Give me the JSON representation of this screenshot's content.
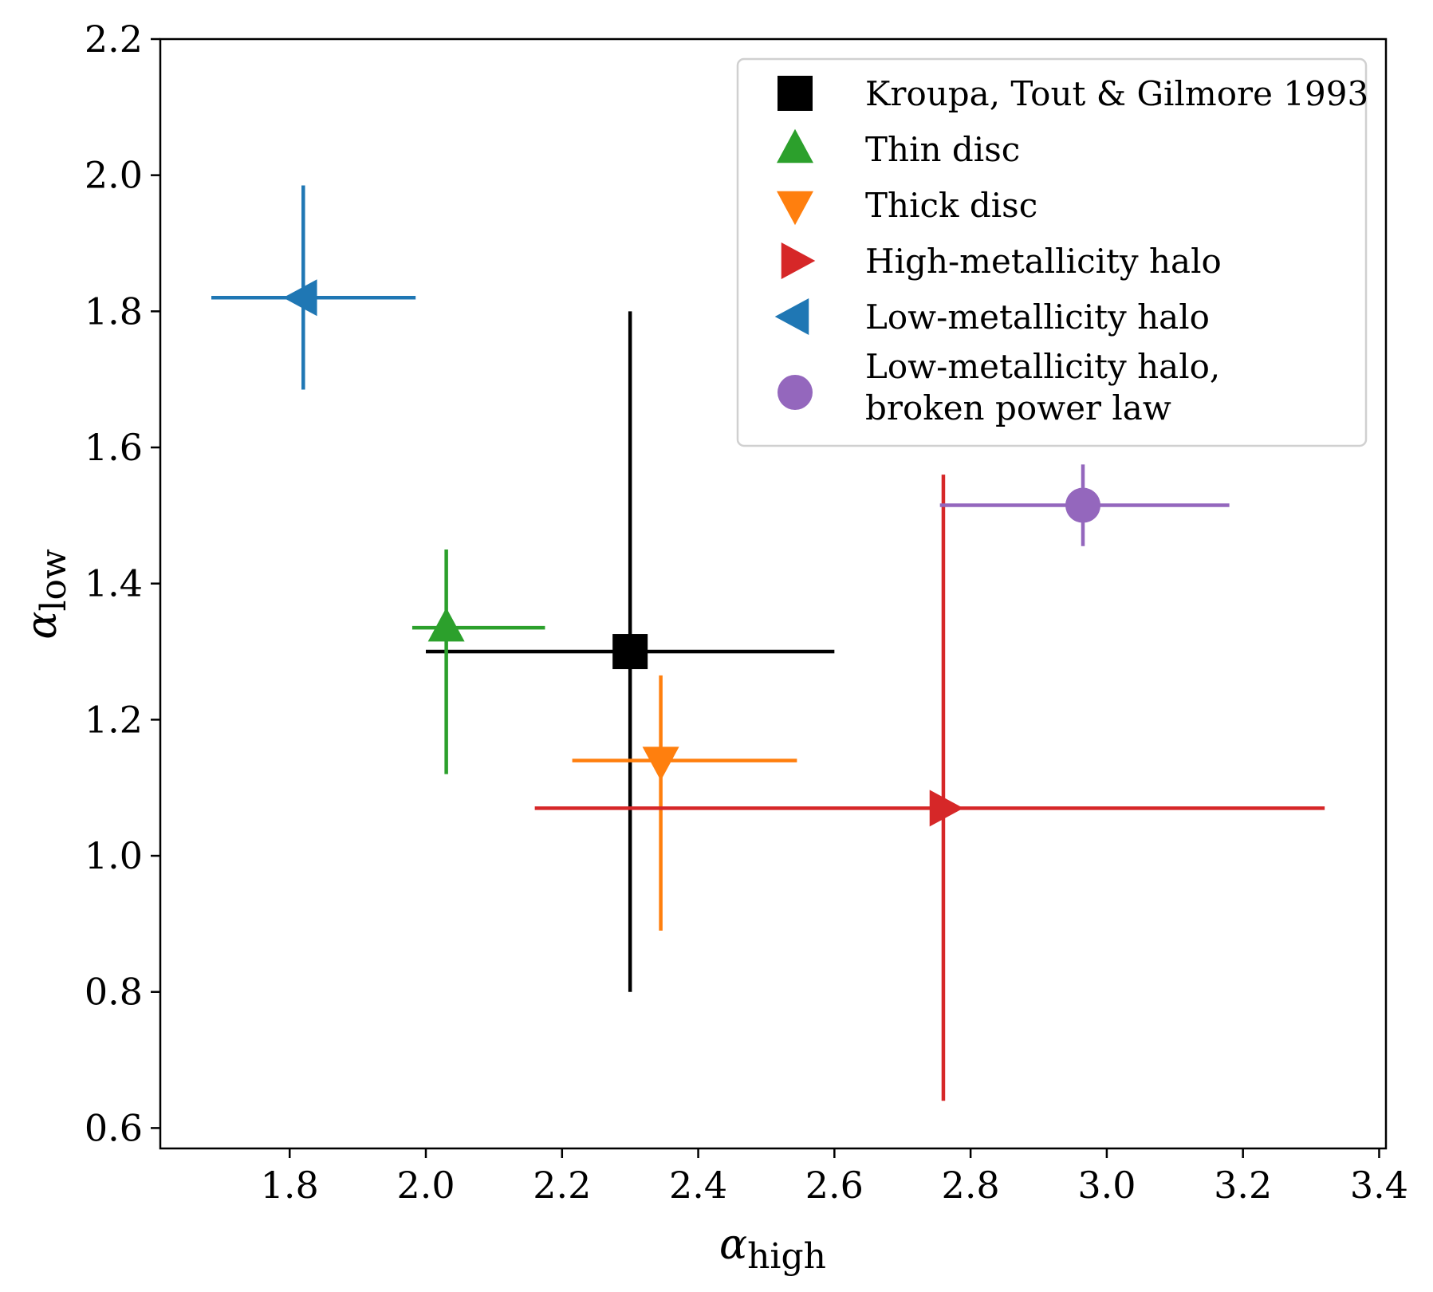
{
  "chart_data": {
    "type": "scatter",
    "title": "",
    "xlabel": {
      "symbol": "α",
      "subscript": "high"
    },
    "ylabel": {
      "symbol": "α",
      "subscript": "low"
    },
    "xlim": [
      1.61,
      3.41
    ],
    "ylim": [
      0.57,
      2.2
    ],
    "x_ticks": [
      "1.8",
      "2.0",
      "2.2",
      "2.4",
      "2.6",
      "2.8",
      "3.0",
      "3.2",
      "3.4"
    ],
    "y_ticks": [
      "0.6",
      "0.8",
      "1.0",
      "1.2",
      "1.4",
      "1.6",
      "1.8",
      "2.0",
      "2.2"
    ],
    "grid": false,
    "legend_position": "top-right",
    "series": [
      {
        "name": "Kroupa, Tout & Gilmore 1993",
        "marker": "square",
        "color": "#000000",
        "x": 2.3,
        "y": 1.3,
        "x_err": [
          0.3,
          0.3
        ],
        "y_err": [
          0.5,
          0.5
        ]
      },
      {
        "name": "Thin disc",
        "marker": "triangle-up",
        "color": "#2ca02c",
        "x": 2.03,
        "y": 1.335,
        "x_err": [
          0.05,
          0.145
        ],
        "y_err": [
          0.215,
          0.115
        ]
      },
      {
        "name": "Thick disc",
        "marker": "triangle-down",
        "color": "#ff7f0e",
        "x": 2.345,
        "y": 1.14,
        "x_err": [
          0.13,
          0.2
        ],
        "y_err": [
          0.25,
          0.125
        ]
      },
      {
        "name": "High-metallicity halo",
        "marker": "triangle-right",
        "color": "#d62728",
        "x": 2.76,
        "y": 1.07,
        "x_err": [
          0.6,
          0.56
        ],
        "y_err": [
          0.43,
          0.49
        ]
      },
      {
        "name": "Low-metallicity halo",
        "marker": "triangle-left",
        "color": "#1f77b4",
        "x": 1.82,
        "y": 1.82,
        "x_err": [
          0.135,
          0.165
        ],
        "y_err": [
          0.135,
          0.165
        ]
      },
      {
        "name": "Low-metallicity halo,\nbroken power law",
        "marker": "circle",
        "color": "#9467bd",
        "x": 2.965,
        "y": 1.515,
        "x_err": [
          0.21,
          0.215
        ],
        "y_err": [
          0.06,
          0.06
        ]
      }
    ]
  }
}
